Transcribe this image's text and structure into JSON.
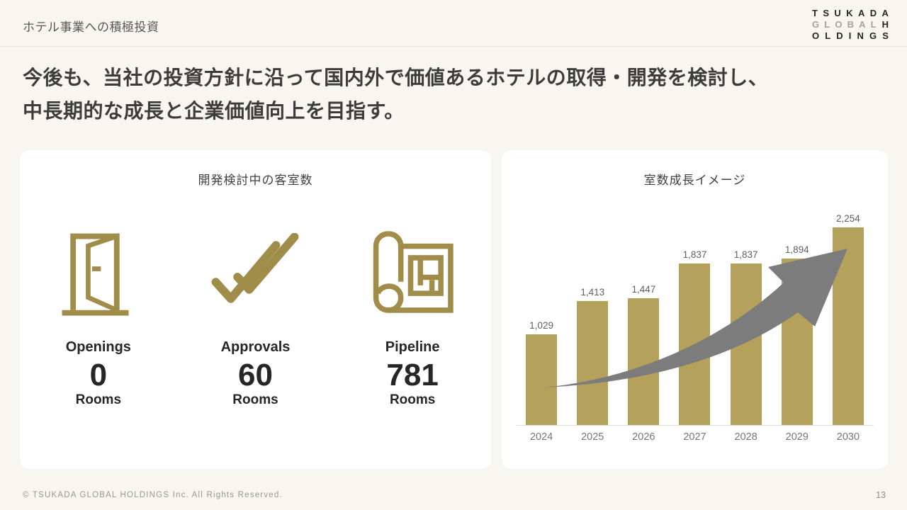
{
  "header": {
    "title": "ホテル事業への積極投資",
    "logo": {
      "line1": "TSUKADA",
      "line2_gray": "GLOBAL",
      "line2_dark": "H",
      "line3": "OLDINGS"
    }
  },
  "heading": {
    "line1": "今後も、当社の投資方針に沿って国内外で価値あるホテルの取得・開発を検討し、",
    "line2": "中長期的な成長と企業価値向上を目指す。"
  },
  "left_card": {
    "title": "開発検討中の客室数",
    "stats": [
      {
        "icon": "open-door-icon",
        "label": "Openings",
        "value": "0",
        "unit": "Rooms"
      },
      {
        "icon": "double-check-icon",
        "label": "Approvals",
        "value": "60",
        "unit": "Rooms"
      },
      {
        "icon": "blueprint-icon",
        "label": "Pipeline",
        "value": "781",
        "unit": "Rooms"
      }
    ]
  },
  "right_card": {
    "title": "室数成長イメージ",
    "annotation_icon": "growth-arrow-icon"
  },
  "chart_data": {
    "type": "bar",
    "title": "室数成長イメージ",
    "categories": [
      "2024",
      "2025",
      "2026",
      "2027",
      "2028",
      "2029",
      "2030"
    ],
    "values": [
      1029,
      1413,
      1447,
      1837,
      1837,
      1894,
      2254
    ],
    "value_labels": [
      "1,029",
      "1,413",
      "1,447",
      "1,837",
      "1,837",
      "1,894",
      "2,254"
    ],
    "xlabel": "",
    "ylabel": "",
    "ylim": [
      0,
      2300
    ],
    "grid": false,
    "legend": false,
    "bar_color": "#B3A15C",
    "annotation": "upward growth arrow from 2024 to 2030"
  },
  "footer": {
    "copyright": "© TSUKADA GLOBAL HOLDINGS Inc. All Rights Reserved.",
    "page_number": "13"
  },
  "colors": {
    "background": "#F8F6F0",
    "gold_icon": "#A08D49",
    "bar_gold": "#B3A15C",
    "arrow_gray": "#7C7C7C",
    "heading_text": "#3C3C3C"
  }
}
